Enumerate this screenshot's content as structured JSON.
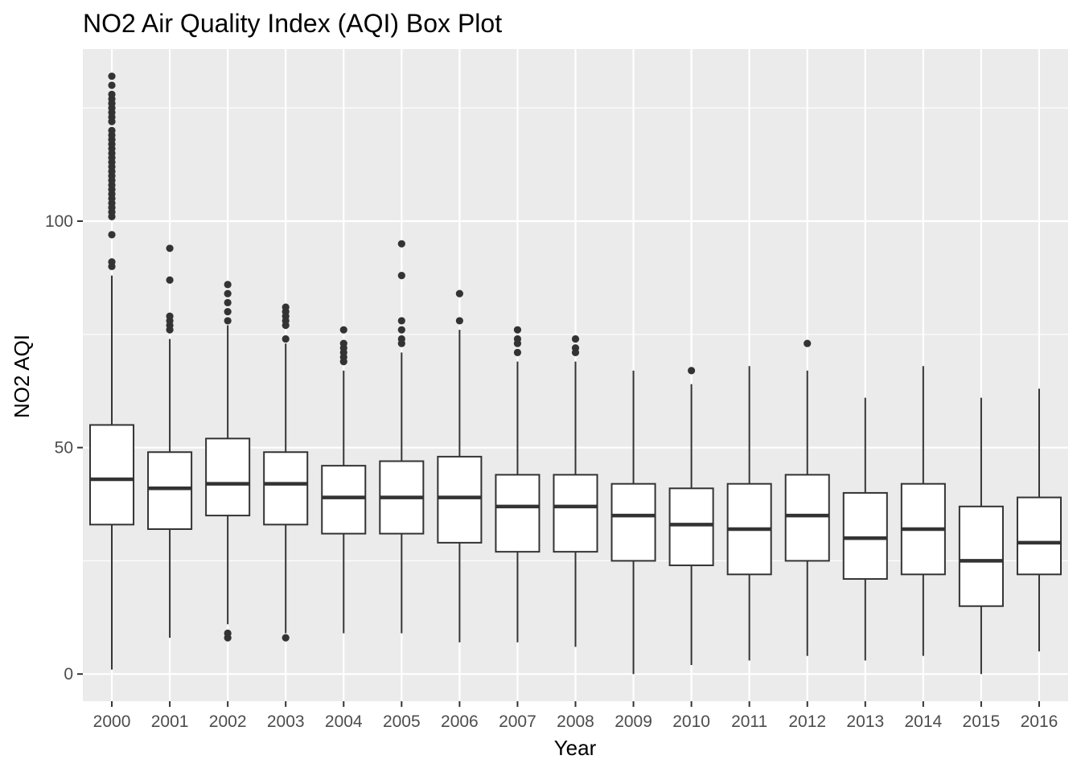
{
  "chart_data": {
    "type": "box",
    "title": "NO2 Air Quality Index (AQI) Box Plot",
    "xlabel": "Year",
    "ylabel": "NO2 AQI",
    "categories": [
      "2000",
      "2001",
      "2002",
      "2003",
      "2004",
      "2005",
      "2006",
      "2007",
      "2008",
      "2009",
      "2010",
      "2011",
      "2012",
      "2013",
      "2014",
      "2015",
      "2016"
    ],
    "yticks": [
      0,
      50,
      100
    ],
    "ylim": [
      -6,
      138
    ],
    "grid": true,
    "legend": "none",
    "colors": {
      "panel": "#ebebeb",
      "grid": "#ffffff",
      "box_fill": "#ffffff",
      "box_line": "#333333",
      "outlier": "#333333",
      "tick_mark": "#333333"
    },
    "boxes": [
      {
        "year": "2000",
        "whisker_low": 1,
        "q1": 33,
        "median": 43,
        "q3": 55,
        "whisker_high": 88,
        "outliers": [
          90,
          91,
          97,
          101,
          102,
          103,
          104,
          105,
          106,
          107,
          108,
          109,
          110,
          111,
          112,
          113,
          114,
          115,
          116,
          117,
          118,
          119,
          120,
          122,
          123,
          124,
          125,
          126,
          127,
          128,
          130,
          132
        ]
      },
      {
        "year": "2001",
        "whisker_low": 8,
        "q1": 32,
        "median": 41,
        "q3": 49,
        "whisker_high": 74,
        "outliers": [
          76,
          77,
          78,
          79,
          87,
          94
        ]
      },
      {
        "year": "2002",
        "whisker_low": 11,
        "q1": 35,
        "median": 42,
        "q3": 52,
        "whisker_high": 77,
        "outliers": [
          8,
          9,
          78,
          80,
          82,
          84,
          86
        ]
      },
      {
        "year": "2003",
        "whisker_low": 9,
        "q1": 33,
        "median": 42,
        "q3": 49,
        "whisker_high": 73,
        "outliers": [
          8,
          74,
          77,
          78,
          79,
          80,
          81
        ]
      },
      {
        "year": "2004",
        "whisker_low": 9,
        "q1": 31,
        "median": 39,
        "q3": 46,
        "whisker_high": 67,
        "outliers": [
          69,
          70,
          71,
          72,
          73,
          76
        ]
      },
      {
        "year": "2005",
        "whisker_low": 9,
        "q1": 31,
        "median": 39,
        "q3": 47,
        "whisker_high": 71,
        "outliers": [
          73,
          74,
          76,
          78,
          88,
          95
        ]
      },
      {
        "year": "2006",
        "whisker_low": 7,
        "q1": 29,
        "median": 39,
        "q3": 48,
        "whisker_high": 76,
        "outliers": [
          78,
          84
        ]
      },
      {
        "year": "2007",
        "whisker_low": 7,
        "q1": 27,
        "median": 37,
        "q3": 44,
        "whisker_high": 69,
        "outliers": [
          71,
          73,
          74,
          76
        ]
      },
      {
        "year": "2008",
        "whisker_low": 6,
        "q1": 27,
        "median": 37,
        "q3": 44,
        "whisker_high": 69,
        "outliers": [
          71,
          72,
          74
        ]
      },
      {
        "year": "2009",
        "whisker_low": 0,
        "q1": 25,
        "median": 35,
        "q3": 42,
        "whisker_high": 67,
        "outliers": []
      },
      {
        "year": "2010",
        "whisker_low": 2,
        "q1": 24,
        "median": 33,
        "q3": 41,
        "whisker_high": 64,
        "outliers": [
          67
        ]
      },
      {
        "year": "2011",
        "whisker_low": 3,
        "q1": 22,
        "median": 32,
        "q3": 42,
        "whisker_high": 68,
        "outliers": []
      },
      {
        "year": "2012",
        "whisker_low": 4,
        "q1": 25,
        "median": 35,
        "q3": 44,
        "whisker_high": 67,
        "outliers": [
          73
        ]
      },
      {
        "year": "2013",
        "whisker_low": 3,
        "q1": 21,
        "median": 30,
        "q3": 40,
        "whisker_high": 61,
        "outliers": []
      },
      {
        "year": "2014",
        "whisker_low": 4,
        "q1": 22,
        "median": 32,
        "q3": 42,
        "whisker_high": 68,
        "outliers": []
      },
      {
        "year": "2015",
        "whisker_low": 0,
        "q1": 15,
        "median": 25,
        "q3": 37,
        "whisker_high": 61,
        "outliers": []
      },
      {
        "year": "2016",
        "whisker_low": 5,
        "q1": 22,
        "median": 29,
        "q3": 39,
        "whisker_high": 63,
        "outliers": []
      }
    ]
  }
}
